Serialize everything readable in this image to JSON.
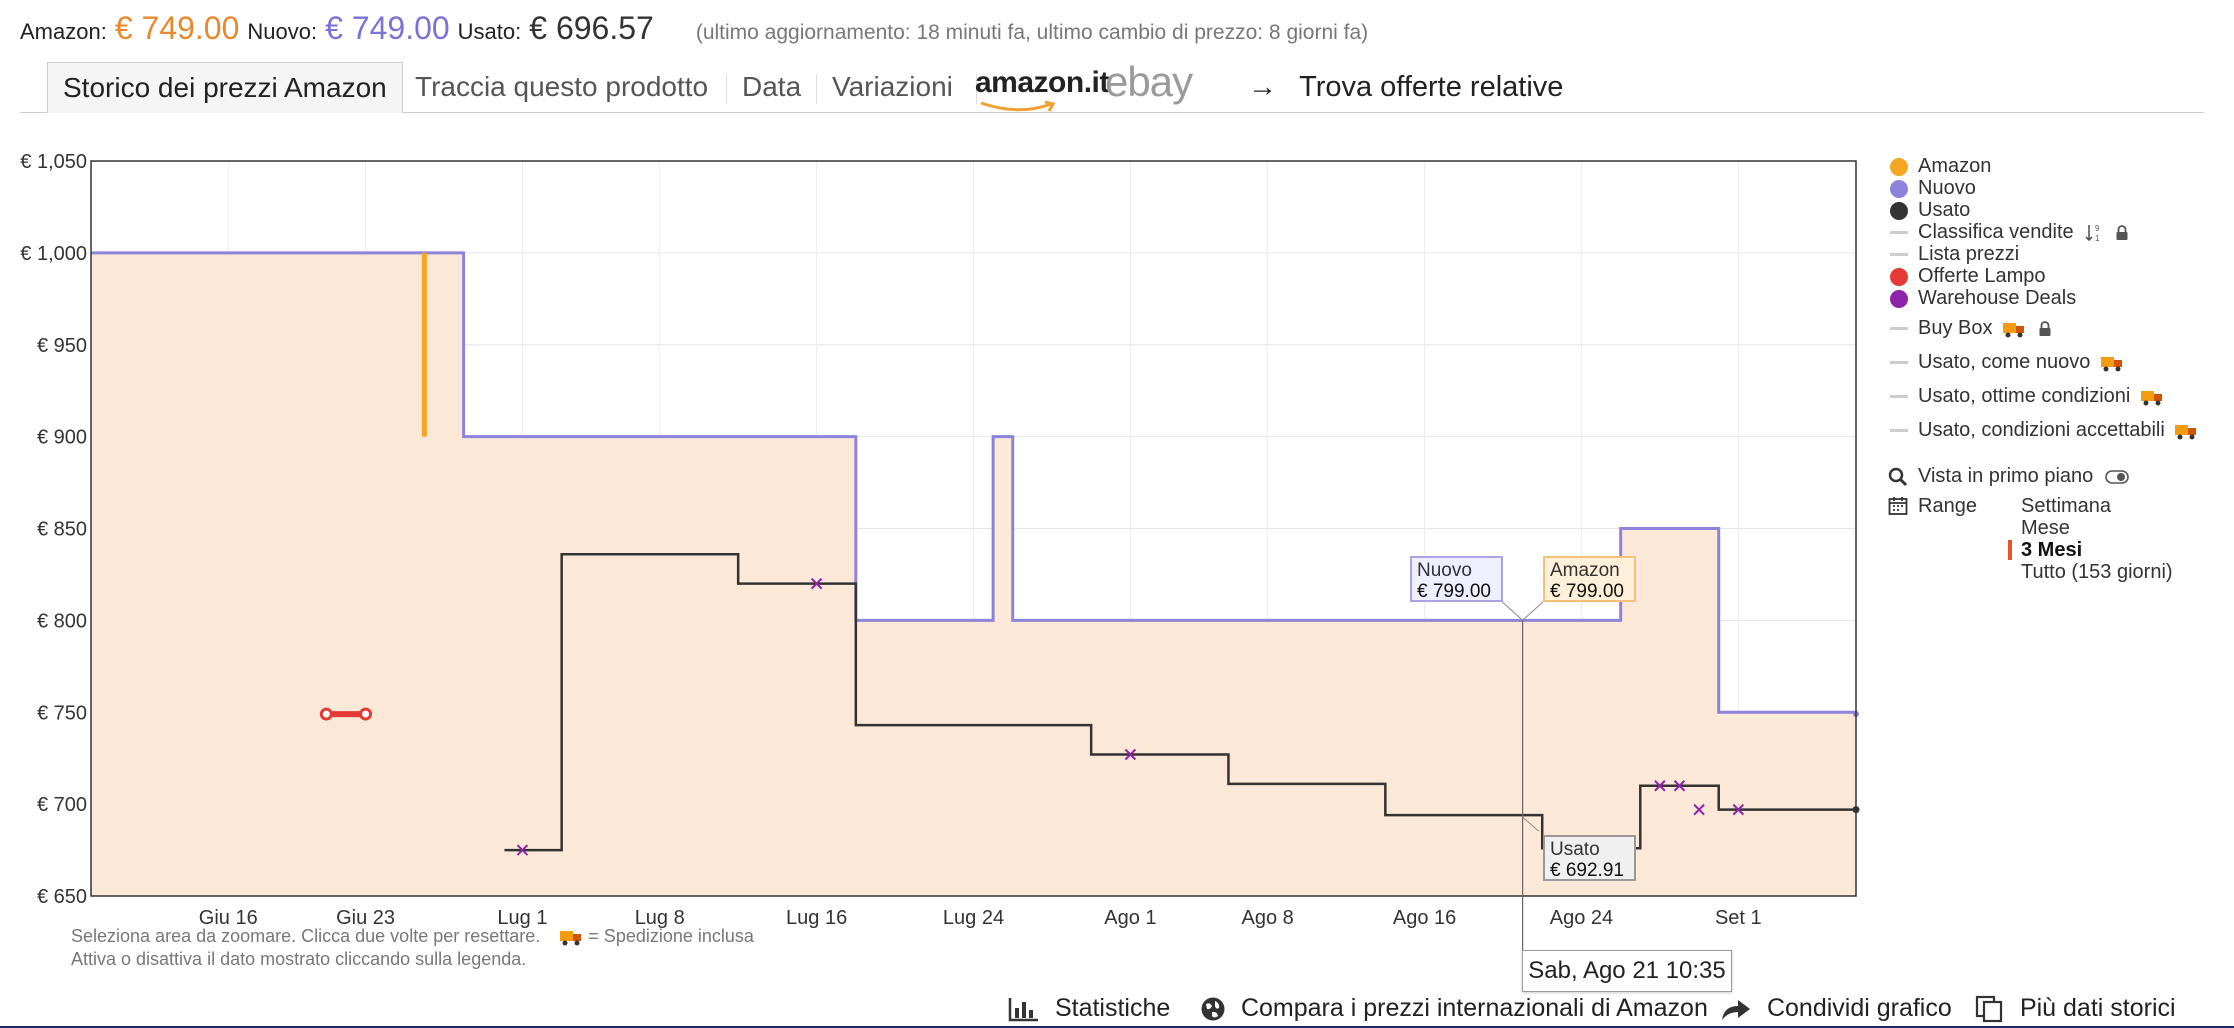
{
  "summary": {
    "amazon_label": "Amazon:",
    "amazon_price": "€ 749.00",
    "nuovo_label": "Nuovo:",
    "nuovo_price": "€ 749.00",
    "usato_label": "Usato:",
    "usato_price": "€ 696.57",
    "update_note": "(ultimo aggiornamento: 18 minuti fa,  ultimo cambio di prezzo: 8 giorni fa)"
  },
  "tabs": [
    {
      "label": "Storico dei prezzi Amazon",
      "active": true
    },
    {
      "label": "Traccia questo prodotto",
      "active": false
    },
    {
      "label": "Data",
      "active": false
    },
    {
      "label": "Variazioni",
      "active": false
    }
  ],
  "logos": {
    "amazon": "amazon.it",
    "ebay": "ebay"
  },
  "related_link": "Trova offerte relative",
  "chart_data": {
    "type": "line",
    "step": true,
    "x_type": "date",
    "ylim": [
      650,
      1050
    ],
    "yticks": [
      650,
      700,
      750,
      800,
      850,
      900,
      950,
      1000,
      1050
    ],
    "ytick_labels": [
      "€ 650",
      "€ 700",
      "€ 750",
      "€ 800",
      "€ 850",
      "€ 900",
      "€ 950",
      "€ 1,000",
      "€ 1,050"
    ],
    "xlim": [
      "2021-06-09",
      "2021-09-07"
    ],
    "xticks": [
      {
        "date": "2021-06-16",
        "label": "Giu 16"
      },
      {
        "date": "2021-06-23",
        "label": "Giu 23"
      },
      {
        "date": "2021-07-01",
        "label": "Lug 1"
      },
      {
        "date": "2021-07-08",
        "label": "Lug 8"
      },
      {
        "date": "2021-07-16",
        "label": "Lug 16"
      },
      {
        "date": "2021-07-24",
        "label": "Lug 24"
      },
      {
        "date": "2021-08-01",
        "label": "Ago 1"
      },
      {
        "date": "2021-08-08",
        "label": "Ago 8"
      },
      {
        "date": "2021-08-16",
        "label": "Ago 16"
      },
      {
        "date": "2021-08-24",
        "label": "Ago 24"
      },
      {
        "date": "2021-09-01",
        "label": "Set 1"
      }
    ],
    "grid": true,
    "legend_position": "right",
    "series": [
      {
        "name": "Nuovo",
        "color": "#8c84dc",
        "fill": "#fce8d6",
        "points": [
          [
            "2021-06-09",
            1000
          ],
          [
            "2021-06-28",
            900
          ],
          [
            "2021-07-18",
            800
          ],
          [
            "2021-07-25",
            900
          ],
          [
            "2021-07-26",
            800
          ],
          [
            "2021-08-26",
            850
          ],
          [
            "2021-08-31",
            750
          ],
          [
            "2021-09-07",
            749
          ]
        ]
      },
      {
        "name": "Amazon",
        "color": "#f5a623",
        "segments": [
          {
            "date": "2021-06-26",
            "from": 1000,
            "to": 900
          }
        ]
      },
      {
        "name": "Usato",
        "color": "#333333",
        "points": [
          [
            "2021-07-01",
            675
          ],
          [
            "2021-07-03",
            836
          ],
          [
            "2021-07-12",
            820
          ],
          [
            "2021-07-18",
            743
          ],
          [
            "2021-07-30",
            727
          ],
          [
            "2021-08-06",
            711
          ],
          [
            "2021-08-14",
            694
          ],
          [
            "2021-08-22",
            676
          ],
          [
            "2021-08-27",
            710
          ],
          [
            "2021-08-31",
            697
          ],
          [
            "2021-09-07",
            697
          ]
        ],
        "markers": [
          [
            "2021-07-01",
            675
          ],
          [
            "2021-07-16",
            820
          ],
          [
            "2021-08-01",
            727
          ],
          [
            "2021-08-28",
            710
          ],
          [
            "2021-08-29",
            710
          ],
          [
            "2021-08-30",
            697
          ],
          [
            "2021-09-01",
            697
          ]
        ]
      },
      {
        "name": "Offerte Lampo",
        "color": "#e53935",
        "range": {
          "from": "2021-06-21",
          "to": "2021-06-23",
          "value": 749
        }
      }
    ],
    "hover": {
      "date": "2021-08-21",
      "label": "Sab, Ago 21 10:35",
      "nuovo": {
        "title": "Nuovo",
        "value": "€ 799.00"
      },
      "amazon": {
        "title": "Amazon",
        "value": "€ 799.00"
      },
      "usato": {
        "title": "Usato",
        "value": "€ 692.91"
      }
    }
  },
  "hints": {
    "line1": "Seleziona area da zoomare. Clicca due volte per resettare.",
    "shipping": "= Spedizione inclusa",
    "line2": "Attiva o disattiva il dato mostrato cliccando sulla legenda."
  },
  "legend": {
    "items": [
      {
        "label": "Amazon",
        "type": "dot",
        "color": "#f5a623"
      },
      {
        "label": "Nuovo",
        "type": "dot",
        "color": "#8c84dc"
      },
      {
        "label": "Usato",
        "type": "dot",
        "color": "#333333"
      },
      {
        "label": "Classifica vendite",
        "type": "dash",
        "color": "#cccccc"
      },
      {
        "label": "Lista prezzi",
        "type": "dash",
        "color": "#cccccc"
      },
      {
        "label": "Offerte Lampo",
        "type": "dot",
        "color": "#e53935"
      },
      {
        "label": "Warehouse Deals",
        "type": "dot",
        "color": "#8e24aa"
      },
      {
        "label": "Buy Box",
        "type": "dash",
        "color": "#cccccc"
      },
      {
        "label": "Usato, come nuovo",
        "type": "dash",
        "color": "#cccccc"
      },
      {
        "label": "Usato, ottime condizioni",
        "type": "dash",
        "color": "#cccccc"
      },
      {
        "label": "Usato, condizioni accettabili",
        "type": "dash",
        "color": "#cccccc"
      }
    ],
    "foreground_view": "Vista in primo piano",
    "range_label": "Range",
    "range_options": [
      "Settimana",
      "Mese",
      "3 Mesi",
      "Tutto (153 giorni)"
    ],
    "range_selected": "3 Mesi"
  },
  "bottom_links": {
    "stats": "Statistiche",
    "compare": "Compara i prezzi internazionali di Amazon",
    "share": "Condividi grafico",
    "more": "Più dati storici"
  }
}
